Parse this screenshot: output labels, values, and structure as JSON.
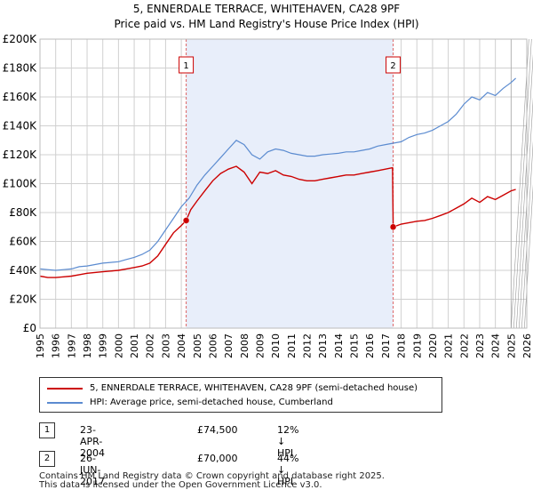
{
  "chart_data": {
    "type": "line",
    "title": "5, ENNERDALE TERRACE, WHITEHAVEN, CA28 9PF",
    "subtitle": "Price paid vs. HM Land Registry's House Price Index (HPI)",
    "xlabel": "",
    "ylabel": "",
    "xlim": [
      1995,
      2026
    ],
    "ylim": [
      0,
      200000
    ],
    "y_ticks": [
      0,
      20000,
      40000,
      60000,
      80000,
      100000,
      120000,
      140000,
      160000,
      180000,
      200000
    ],
    "y_tick_labels": [
      "£0",
      "£20K",
      "£40K",
      "£60K",
      "£80K",
      "£100K",
      "£120K",
      "£140K",
      "£160K",
      "£180K",
      "£200K"
    ],
    "x_ticks": [
      1995,
      1996,
      1997,
      1998,
      1999,
      2000,
      2001,
      2002,
      2003,
      2004,
      2005,
      2006,
      2007,
      2008,
      2009,
      2010,
      2011,
      2012,
      2013,
      2014,
      2015,
      2016,
      2017,
      2018,
      2019,
      2020,
      2021,
      2022,
      2023,
      2024,
      2025,
      2026
    ],
    "x_tick_labels": [
      "1995",
      "1996",
      "1997",
      "1998",
      "1999",
      "2000",
      "2001",
      "2002",
      "2003",
      "2004",
      "2005",
      "2006",
      "2007",
      "2008",
      "2009",
      "2010",
      "2011",
      "2012",
      "2013",
      "2014",
      "2015",
      "2016",
      "2017",
      "2018",
      "2019",
      "2020",
      "2021",
      "2022",
      "2023",
      "2024",
      "2025",
      "2026"
    ],
    "shaded_region": [
      2004.31,
      2017.49
    ],
    "hatched_from": 2025.0,
    "series": [
      {
        "name": "5, ENNERDALE TERRACE, WHITEHAVEN, CA28 9PF (semi-detached house)",
        "color": "#cc0000",
        "x": [
          1995.0,
          1995.5,
          1996.0,
          1996.5,
          1997.0,
          1997.5,
          1998.0,
          1998.5,
          1999.0,
          1999.5,
          2000.0,
          2000.5,
          2001.0,
          2001.5,
          2002.0,
          2002.5,
          2003.0,
          2003.5,
          2004.0,
          2004.31,
          2004.6,
          2005.0,
          2005.5,
          2006.0,
          2006.5,
          2007.0,
          2007.5,
          2008.0,
          2008.5,
          2009.0,
          2009.5,
          2010.0,
          2010.5,
          2011.0,
          2011.5,
          2012.0,
          2012.5,
          2013.0,
          2013.5,
          2014.0,
          2014.5,
          2015.0,
          2015.5,
          2016.0,
          2016.5,
          2017.0,
          2017.45,
          2017.49,
          2018.0,
          2018.5,
          2019.0,
          2019.5,
          2020.0,
          2020.5,
          2021.0,
          2021.5,
          2022.0,
          2022.5,
          2023.0,
          2023.5,
          2024.0,
          2024.5,
          2025.0,
          2025.3
        ],
        "y": [
          36000,
          35000,
          35000,
          35500,
          36000,
          37000,
          38000,
          38500,
          39000,
          39500,
          40000,
          41000,
          42000,
          43000,
          45000,
          50000,
          58000,
          66000,
          71000,
          74500,
          82000,
          88000,
          95000,
          102000,
          107000,
          110000,
          112000,
          108000,
          100000,
          108000,
          107000,
          109000,
          106000,
          105000,
          103000,
          102000,
          102000,
          103000,
          104000,
          105000,
          106000,
          106000,
          107000,
          108000,
          109000,
          110000,
          111000,
          70000,
          72000,
          73000,
          74000,
          74500,
          76000,
          78000,
          80000,
          83000,
          86000,
          90000,
          87000,
          91000,
          89000,
          92000,
          95000,
          96000
        ]
      },
      {
        "name": "HPI: Average price, semi-detached house, Cumberland",
        "color": "#5b8bd0",
        "x": [
          1995.0,
          1995.5,
          1996.0,
          1996.5,
          1997.0,
          1997.5,
          1998.0,
          1998.5,
          1999.0,
          1999.5,
          2000.0,
          2000.5,
          2001.0,
          2001.5,
          2002.0,
          2002.5,
          2003.0,
          2003.5,
          2004.0,
          2004.5,
          2005.0,
          2005.5,
          2006.0,
          2006.5,
          2007.0,
          2007.5,
          2008.0,
          2008.5,
          2009.0,
          2009.5,
          2010.0,
          2010.5,
          2011.0,
          2011.5,
          2012.0,
          2012.5,
          2013.0,
          2013.5,
          2014.0,
          2014.5,
          2015.0,
          2015.5,
          2016.0,
          2016.5,
          2017.0,
          2017.5,
          2018.0,
          2018.5,
          2019.0,
          2019.5,
          2020.0,
          2020.5,
          2021.0,
          2021.5,
          2022.0,
          2022.5,
          2023.0,
          2023.5,
          2024.0,
          2024.5,
          2025.0,
          2025.3
        ],
        "y": [
          41000,
          40500,
          40000,
          40500,
          41000,
          42500,
          43000,
          44000,
          45000,
          45500,
          46000,
          47500,
          49000,
          51000,
          54000,
          60000,
          68000,
          76000,
          84000,
          90000,
          99000,
          106000,
          112000,
          118000,
          124000,
          130000,
          127000,
          120000,
          117000,
          122000,
          124000,
          123000,
          121000,
          120000,
          119000,
          119000,
          120000,
          120500,
          121000,
          122000,
          122000,
          123000,
          124000,
          126000,
          127000,
          128000,
          129000,
          132000,
          134000,
          135000,
          137000,
          140000,
          143000,
          148000,
          155000,
          160000,
          158000,
          163000,
          161000,
          166000,
          170000,
          173000
        ]
      }
    ],
    "markers": [
      {
        "label": "1",
        "x": 2004.31,
        "y": 74500
      },
      {
        "label": "2",
        "x": 2017.49,
        "y": 70000
      }
    ]
  },
  "legend": {
    "property": "5, ENNERDALE TERRACE, WHITEHAVEN, CA28 9PF (semi-detached house)",
    "hpi": "HPI: Average price, semi-detached house, Cumberland"
  },
  "transactions": [
    {
      "num": "1",
      "date": "23-APR-2004",
      "price": "£74,500",
      "hpi": "12% ↓ HPI"
    },
    {
      "num": "2",
      "date": "26-JUN-2017",
      "price": "£70,000",
      "hpi": "44% ↓ HPI"
    }
  ],
  "footer": {
    "line1": "Contains HM Land Registry data © Crown copyright and database right 2025.",
    "line2": "This data is licensed under the Open Government Licence v3.0."
  },
  "colors": {
    "property": "#cc0000",
    "hpi": "#5b8bd0",
    "shade": "#e8eefa",
    "grid": "#d0d0d0",
    "vline": "#dd6666"
  }
}
